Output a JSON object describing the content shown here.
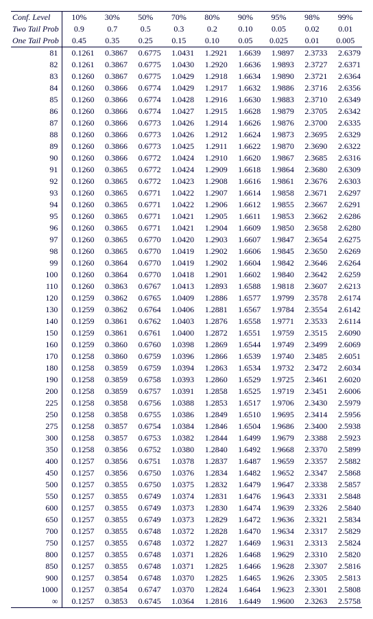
{
  "colors": {
    "text": "#000033",
    "background": "#ffffff",
    "border": "#000033"
  },
  "typography": {
    "family": "Times New Roman",
    "size_pt": 9
  },
  "header": {
    "confLabel": "Conf. Level",
    "twoTailLabel": "Two Tail Prob",
    "oneTailLabel": "One Tail Prob",
    "confLevels": [
      "10%",
      "30%",
      "50%",
      "70%",
      "80%",
      "90%",
      "95%",
      "98%",
      "99%"
    ],
    "twoTail": [
      "0.9",
      "0.7",
      "0.5",
      "0.3",
      "0.2",
      "0.10",
      "0.05",
      "0.02",
      "0.01"
    ],
    "oneTail": [
      "0.45",
      "0.35",
      "0.25",
      "0.15",
      "0.10",
      "0.05",
      "0.025",
      "0.01",
      "0.005"
    ]
  },
  "rows": [
    {
      "n": "81",
      "v": [
        "0.1261",
        "0.3867",
        "0.6775",
        "1.0431",
        "1.2921",
        "1.6639",
        "1.9897",
        "2.3733",
        "2.6379"
      ]
    },
    {
      "n": "82",
      "v": [
        "0.1261",
        "0.3867",
        "0.6775",
        "1.0430",
        "1.2920",
        "1.6636",
        "1.9893",
        "2.3727",
        "2.6371"
      ]
    },
    {
      "n": "83",
      "v": [
        "0.1260",
        "0.3867",
        "0.6775",
        "1.0429",
        "1.2918",
        "1.6634",
        "1.9890",
        "2.3721",
        "2.6364"
      ]
    },
    {
      "n": "84",
      "v": [
        "0.1260",
        "0.3866",
        "0.6774",
        "1.0429",
        "1.2917",
        "1.6632",
        "1.9886",
        "2.3716",
        "2.6356"
      ]
    },
    {
      "n": "85",
      "v": [
        "0.1260",
        "0.3866",
        "0.6774",
        "1.0428",
        "1.2916",
        "1.6630",
        "1.9883",
        "2.3710",
        "2.6349"
      ]
    },
    {
      "n": "86",
      "v": [
        "0.1260",
        "0.3866",
        "0.6774",
        "1.0427",
        "1.2915",
        "1.6628",
        "1.9879",
        "2.3705",
        "2.6342"
      ]
    },
    {
      "n": "87",
      "v": [
        "0.1260",
        "0.3866",
        "0.6773",
        "1.0426",
        "1.2914",
        "1.6626",
        "1.9876",
        "2.3700",
        "2.6335"
      ]
    },
    {
      "n": "88",
      "v": [
        "0.1260",
        "0.3866",
        "0.6773",
        "1.0426",
        "1.2912",
        "1.6624",
        "1.9873",
        "2.3695",
        "2.6329"
      ]
    },
    {
      "n": "89",
      "v": [
        "0.1260",
        "0.3866",
        "0.6773",
        "1.0425",
        "1.2911",
        "1.6622",
        "1.9870",
        "2.3690",
        "2.6322"
      ]
    },
    {
      "n": "90",
      "v": [
        "0.1260",
        "0.3866",
        "0.6772",
        "1.0424",
        "1.2910",
        "1.6620",
        "1.9867",
        "2.3685",
        "2.6316"
      ]
    },
    {
      "n": "91",
      "v": [
        "0.1260",
        "0.3865",
        "0.6772",
        "1.0424",
        "1.2909",
        "1.6618",
        "1.9864",
        "2.3680",
        "2.6309"
      ]
    },
    {
      "n": "92",
      "v": [
        "0.1260",
        "0.3865",
        "0.6772",
        "1.0423",
        "1.2908",
        "1.6616",
        "1.9861",
        "2.3676",
        "2.6303"
      ]
    },
    {
      "n": "93",
      "v": [
        "0.1260",
        "0.3865",
        "0.6771",
        "1.0422",
        "1.2907",
        "1.6614",
        "1.9858",
        "2.3671",
        "2.6297"
      ]
    },
    {
      "n": "94",
      "v": [
        "0.1260",
        "0.3865",
        "0.6771",
        "1.0422",
        "1.2906",
        "1.6612",
        "1.9855",
        "2.3667",
        "2.6291"
      ]
    },
    {
      "n": "95",
      "v": [
        "0.1260",
        "0.3865",
        "0.6771",
        "1.0421",
        "1.2905",
        "1.6611",
        "1.9853",
        "2.3662",
        "2.6286"
      ]
    },
    {
      "n": "96",
      "v": [
        "0.1260",
        "0.3865",
        "0.6771",
        "1.0421",
        "1.2904",
        "1.6609",
        "1.9850",
        "2.3658",
        "2.6280"
      ]
    },
    {
      "n": "97",
      "v": [
        "0.1260",
        "0.3865",
        "0.6770",
        "1.0420",
        "1.2903",
        "1.6607",
        "1.9847",
        "2.3654",
        "2.6275"
      ]
    },
    {
      "n": "98",
      "v": [
        "0.1260",
        "0.3865",
        "0.6770",
        "1.0419",
        "1.2902",
        "1.6606",
        "1.9845",
        "2.3650",
        "2.6269"
      ]
    },
    {
      "n": "99",
      "v": [
        "0.1260",
        "0.3864",
        "0.6770",
        "1.0419",
        "1.2902",
        "1.6604",
        "1.9842",
        "2.3646",
        "2.6264"
      ]
    },
    {
      "n": "100",
      "v": [
        "0.1260",
        "0.3864",
        "0.6770",
        "1.0418",
        "1.2901",
        "1.6602",
        "1.9840",
        "2.3642",
        "2.6259"
      ]
    },
    {
      "n": "110",
      "v": [
        "0.1260",
        "0.3863",
        "0.6767",
        "1.0413",
        "1.2893",
        "1.6588",
        "1.9818",
        "2.3607",
        "2.6213"
      ]
    },
    {
      "n": "120",
      "v": [
        "0.1259",
        "0.3862",
        "0.6765",
        "1.0409",
        "1.2886",
        "1.6577",
        "1.9799",
        "2.3578",
        "2.6174"
      ]
    },
    {
      "n": "130",
      "v": [
        "0.1259",
        "0.3862",
        "0.6764",
        "1.0406",
        "1.2881",
        "1.6567",
        "1.9784",
        "2.3554",
        "2.6142"
      ]
    },
    {
      "n": "140",
      "v": [
        "0.1259",
        "0.3861",
        "0.6762",
        "1.0403",
        "1.2876",
        "1.6558",
        "1.9771",
        "2.3533",
        "2.6114"
      ]
    },
    {
      "n": "150",
      "v": [
        "0.1259",
        "0.3861",
        "0.6761",
        "1.0400",
        "1.2872",
        "1.6551",
        "1.9759",
        "2.3515",
        "2.6090"
      ]
    },
    {
      "n": "160",
      "v": [
        "0.1259",
        "0.3860",
        "0.6760",
        "1.0398",
        "1.2869",
        "1.6544",
        "1.9749",
        "2.3499",
        "2.6069"
      ]
    },
    {
      "n": "170",
      "v": [
        "0.1258",
        "0.3860",
        "0.6759",
        "1.0396",
        "1.2866",
        "1.6539",
        "1.9740",
        "2.3485",
        "2.6051"
      ]
    },
    {
      "n": "180",
      "v": [
        "0.1258",
        "0.3859",
        "0.6759",
        "1.0394",
        "1.2863",
        "1.6534",
        "1.9732",
        "2.3472",
        "2.6034"
      ]
    },
    {
      "n": "190",
      "v": [
        "0.1258",
        "0.3859",
        "0.6758",
        "1.0393",
        "1.2860",
        "1.6529",
        "1.9725",
        "2.3461",
        "2.6020"
      ]
    },
    {
      "n": "200",
      "v": [
        "0.1258",
        "0.3859",
        "0.6757",
        "1.0391",
        "1.2858",
        "1.6525",
        "1.9719",
        "2.3451",
        "2.6006"
      ]
    },
    {
      "n": "225",
      "v": [
        "0.1258",
        "0.3858",
        "0.6756",
        "1.0388",
        "1.2853",
        "1.6517",
        "1.9706",
        "2.3430",
        "2.5979"
      ]
    },
    {
      "n": "250",
      "v": [
        "0.1258",
        "0.3858",
        "0.6755",
        "1.0386",
        "1.2849",
        "1.6510",
        "1.9695",
        "2.3414",
        "2.5956"
      ]
    },
    {
      "n": "275",
      "v": [
        "0.1258",
        "0.3857",
        "0.6754",
        "1.0384",
        "1.2846",
        "1.6504",
        "1.9686",
        "2.3400",
        "2.5938"
      ]
    },
    {
      "n": "300",
      "v": [
        "0.1258",
        "0.3857",
        "0.6753",
        "1.0382",
        "1.2844",
        "1.6499",
        "1.9679",
        "2.3388",
        "2.5923"
      ]
    },
    {
      "n": "350",
      "v": [
        "0.1258",
        "0.3856",
        "0.6752",
        "1.0380",
        "1.2840",
        "1.6492",
        "1.9668",
        "2.3370",
        "2.5899"
      ]
    },
    {
      "n": "400",
      "v": [
        "0.1257",
        "0.3856",
        "0.6751",
        "1.0378",
        "1.2837",
        "1.6487",
        "1.9659",
        "2.3357",
        "2.5882"
      ]
    },
    {
      "n": "450",
      "v": [
        "0.1257",
        "0.3856",
        "0.6750",
        "1.0376",
        "1.2834",
        "1.6482",
        "1.9652",
        "2.3347",
        "2.5868"
      ]
    },
    {
      "n": "500",
      "v": [
        "0.1257",
        "0.3855",
        "0.6750",
        "1.0375",
        "1.2832",
        "1.6479",
        "1.9647",
        "2.3338",
        "2.5857"
      ]
    },
    {
      "n": "550",
      "v": [
        "0.1257",
        "0.3855",
        "0.6749",
        "1.0374",
        "1.2831",
        "1.6476",
        "1.9643",
        "2.3331",
        "2.5848"
      ]
    },
    {
      "n": "600",
      "v": [
        "0.1257",
        "0.3855",
        "0.6749",
        "1.0373",
        "1.2830",
        "1.6474",
        "1.9639",
        "2.3326",
        "2.5840"
      ]
    },
    {
      "n": "650",
      "v": [
        "0.1257",
        "0.3855",
        "0.6749",
        "1.0373",
        "1.2829",
        "1.6472",
        "1.9636",
        "2.3321",
        "2.5834"
      ]
    },
    {
      "n": "700",
      "v": [
        "0.1257",
        "0.3855",
        "0.6748",
        "1.0372",
        "1.2828",
        "1.6470",
        "1.9634",
        "2.3317",
        "2.5829"
      ]
    },
    {
      "n": "750",
      "v": [
        "0.1257",
        "0.3855",
        "0.6748",
        "1.0372",
        "1.2827",
        "1.6469",
        "1.9631",
        "2.3313",
        "2.5824"
      ]
    },
    {
      "n": "800",
      "v": [
        "0.1257",
        "0.3855",
        "0.6748",
        "1.0371",
        "1.2826",
        "1.6468",
        "1.9629",
        "2.3310",
        "2.5820"
      ]
    },
    {
      "n": "850",
      "v": [
        "0.1257",
        "0.3855",
        "0.6748",
        "1.0371",
        "1.2825",
        "1.6466",
        "1.9628",
        "2.3307",
        "2.5816"
      ]
    },
    {
      "n": "900",
      "v": [
        "0.1257",
        "0.3854",
        "0.6748",
        "1.0370",
        "1.2825",
        "1.6465",
        "1.9626",
        "2.3305",
        "2.5813"
      ]
    },
    {
      "n": "1000",
      "v": [
        "0.1257",
        "0.3854",
        "0.6747",
        "1.0370",
        "1.2824",
        "1.6464",
        "1.9623",
        "2.3301",
        "2.5808"
      ]
    },
    {
      "n": "∞",
      "v": [
        "0.1257",
        "0.3853",
        "0.6745",
        "1.0364",
        "1.2816",
        "1.6449",
        "1.9600",
        "2.3263",
        "2.5758"
      ]
    }
  ]
}
